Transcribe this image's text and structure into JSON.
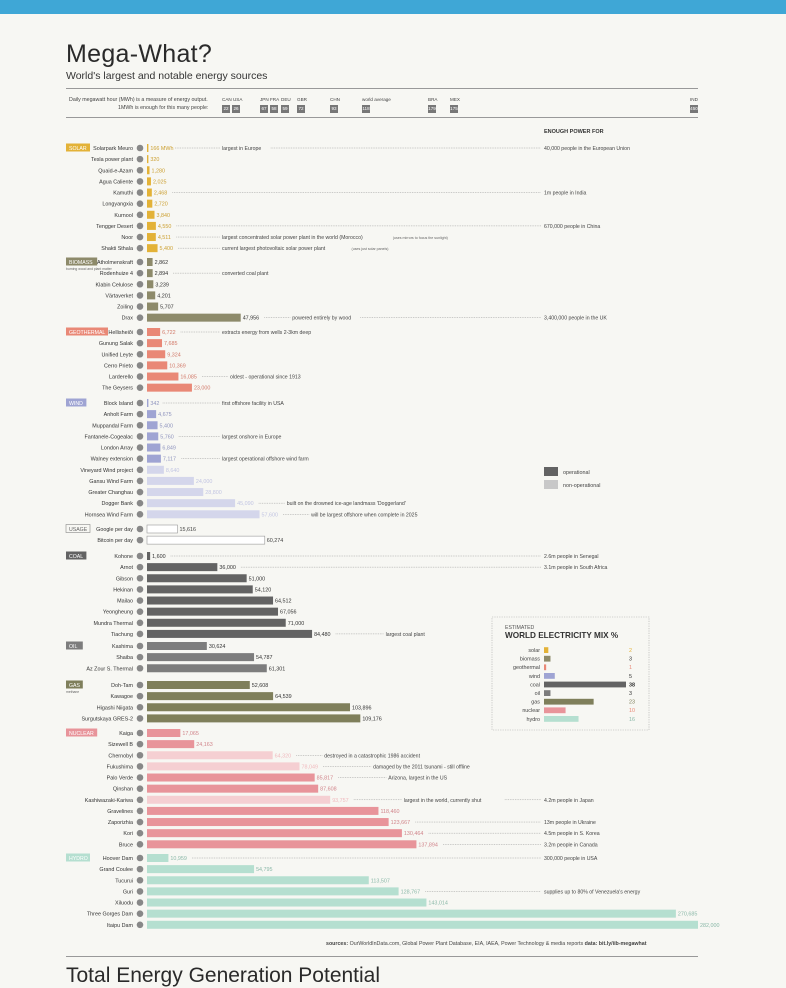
{
  "header": {
    "title": "Mega-What?",
    "subtitle": "World's largest and notable energy sources",
    "daily_note": "Daily megawatt hour (MWh) is a measure of energy output.",
    "enough_note": "1MWh is enough for this many people:",
    "enough_power_for": "ENOUGH POWER FOR",
    "countries": [
      {
        "name": "CAN USA",
        "values": [
          "22",
          "26"
        ]
      },
      {
        "name": "JPN FRA",
        "values": [
          "67",
          "58"
        ]
      },
      {
        "name": "DEU",
        "values": [
          "59"
        ]
      },
      {
        "name": "GBR",
        "values": [
          "72"
        ]
      },
      {
        "name": "CHN",
        "values": [
          "93"
        ]
      },
      {
        "name": "world average",
        "values": [
          "118"
        ]
      },
      {
        "name": "BRA",
        "values": [
          "179"
        ]
      },
      {
        "name": "MEX",
        "values": [
          "175"
        ]
      },
      {
        "name": "IND",
        "values": [
          "450"
        ]
      }
    ]
  },
  "legend": {
    "operational": "operational",
    "non_operational": "non-operational"
  },
  "colors": {
    "solar": "#e3b237",
    "biomass": "#8d8a6a",
    "geothermal": "#e98876",
    "wind": "#9fa4d3",
    "coal": "#636363",
    "oil": "#7d7d7d",
    "gas": "#7f7f5b",
    "nuclear": "#e8949a",
    "hydro": "#b5dfd0",
    "usage": "#ffffff"
  },
  "chart_data": [
    {
      "type": "bar",
      "title": "Mega-What?",
      "xlabel": "Daily megawatt hour (MWh)",
      "scale_max": 282000,
      "groups": [
        {
          "category": "SOLAR",
          "color_key": "solar",
          "items": [
            {
              "name": "Solarpark Meuro",
              "value": 166,
              "value_label": "166 MWh",
              "op": true,
              "note": "largest in Europe",
              "enough": "40,000 people in the European Union"
            },
            {
              "name": "Tesla power plant",
              "value": 320,
              "value_label": "320",
              "op": true
            },
            {
              "name": "Quaid-e-Azam",
              "value": 1280,
              "value_label": "1,280",
              "op": true
            },
            {
              "name": "Agua Caliente",
              "value": 2025,
              "value_label": "2,025",
              "op": true
            },
            {
              "name": "Kamuthi",
              "value": 2468,
              "value_label": "2,468",
              "op": true,
              "enough": "1m people in India"
            },
            {
              "name": "Longyangxia",
              "value": 2720,
              "value_label": "2,720",
              "op": true
            },
            {
              "name": "Kurnool",
              "value": 3840,
              "value_label": "3,840",
              "op": true
            },
            {
              "name": "Tengger Desert",
              "value": 4550,
              "value_label": "4,550",
              "op": true,
              "enough": "670,000 people in China"
            },
            {
              "name": "Noor",
              "value": 4511,
              "value_label": "4,511",
              "op": true,
              "note": "largest concentrated solar power plant in the world (Morocco)",
              "small_note": "(uses mirrors to focus the sunlight)"
            },
            {
              "name": "Shakti Sthala",
              "value": 5400,
              "value_label": "5,400",
              "op": true,
              "note": "current largest photovoltaic solar power plant",
              "small_note": "(uses just solar panels)"
            }
          ]
        },
        {
          "category": "BIOMASS",
          "category_sub": "burning wood and plant matter",
          "color_key": "biomass",
          "items": [
            {
              "name": "Atholmenskraft",
              "value": 2862,
              "value_label": "2,862",
              "op": true
            },
            {
              "name": "Rodenhuize 4",
              "value": 2894,
              "value_label": "2,894",
              "op": true,
              "note": "converted coal plant"
            },
            {
              "name": "Klabin Celulose",
              "value": 3239,
              "value_label": "3,239",
              "op": true
            },
            {
              "name": "Värtaverket",
              "value": 4201,
              "value_label": "4,201",
              "op": true
            },
            {
              "name": "Zoiling",
              "value": 5707,
              "value_label": "5,707",
              "op": true
            },
            {
              "name": "Drax",
              "value": 47956,
              "value_label": "47,956",
              "op": true,
              "note": "powered entirely by wood",
              "enough": "3,400,000 people in the UK"
            }
          ]
        },
        {
          "category": "GEOTHERMAL",
          "color_key": "geothermal",
          "items": [
            {
              "name": "Hellisheiði",
              "value": 6722,
              "value_label": "6,722",
              "op": true,
              "note": "extracts energy from wells 2-3km deep"
            },
            {
              "name": "Gunung Salak",
              "value": 7685,
              "value_label": "7,685",
              "op": true
            },
            {
              "name": "Unified Leyte",
              "value": 9324,
              "value_label": "9,324",
              "op": true
            },
            {
              "name": "Cerro Prieto",
              "value": 10369,
              "value_label": "10,369",
              "op": true
            },
            {
              "name": "Larderello",
              "value": 16085,
              "value_label": "16,085",
              "op": true,
              "note": "oldest - operational since 1913"
            },
            {
              "name": "The Geysers",
              "value": 23000,
              "value_label": "23,000",
              "op": true
            }
          ]
        },
        {
          "category": "WIND",
          "color_key": "wind",
          "items": [
            {
              "name": "Block Island",
              "value": 342,
              "value_label": "342",
              "op": true,
              "note": "first offshore facility in USA"
            },
            {
              "name": "Anholt Farm",
              "value": 4675,
              "value_label": "4,675",
              "op": true
            },
            {
              "name": "Muppandal Farm",
              "value": 5400,
              "value_label": "5,400",
              "op": true
            },
            {
              "name": "Fantanele-Cogealac",
              "value": 5760,
              "value_label": "5,760",
              "op": true,
              "note": "largest onshore in Europe"
            },
            {
              "name": "London Array",
              "value": 6849,
              "value_label": "6,849",
              "op": true
            },
            {
              "name": "Walney extension",
              "value": 7117,
              "value_label": "7,117",
              "op": true,
              "note": "largest operational offshore wind farm"
            },
            {
              "name": "Vineyard Wind project",
              "value": 8640,
              "value_label": "8,640",
              "op": false
            },
            {
              "name": "Gansu Wind Farm",
              "value": 24000,
              "value_label": "24,000",
              "op": false
            },
            {
              "name": "Greater Changhau",
              "value": 28800,
              "value_label": "28,800",
              "op": false
            },
            {
              "name": "Dogger Bank",
              "value": 45090,
              "value_label": "45,090",
              "op": false,
              "note": "built on the drowned ice-age landmass 'Doggerland'"
            },
            {
              "name": "Hornsea Wind Farm",
              "value": 57600,
              "value_label": "57,600",
              "op": false,
              "note": "will be largest offshore when complete in 2025"
            }
          ]
        },
        {
          "category": "USAGE",
          "color_key": "usage",
          "outline": true,
          "items": [
            {
              "name": "Google per day",
              "value": 15616,
              "value_label": "15,616",
              "op": true
            },
            {
              "name": "Bitcoin per day",
              "value": 60274,
              "value_label": "60,274",
              "op": true
            }
          ]
        },
        {
          "category": "COAL",
          "color_key": "coal",
          "items": [
            {
              "name": "Kohone",
              "value": 1600,
              "value_label": "1,600",
              "op": true,
              "enough": "2.6m people in Senegal"
            },
            {
              "name": "Arnot",
              "value": 36000,
              "value_label": "36,000",
              "op": true,
              "enough": "3.1m people in South Africa"
            },
            {
              "name": "Gibson",
              "value": 51000,
              "value_label": "51,000",
              "op": true
            },
            {
              "name": "Hekinan",
              "value": 54120,
              "value_label": "54,120",
              "op": true
            },
            {
              "name": "Mailao",
              "value": 64512,
              "value_label": "64,512",
              "op": true
            },
            {
              "name": "Yeongheung",
              "value": 67056,
              "value_label": "67,056",
              "op": true
            },
            {
              "name": "Mundra Thermal",
              "value": 71000,
              "value_label": "71,000",
              "op": true
            },
            {
              "name": "Tiachung",
              "value": 84480,
              "value_label": "84,480",
              "op": true,
              "note": "largest coal plant"
            }
          ]
        },
        {
          "category": "OIL",
          "color_key": "oil",
          "items": [
            {
              "name": "Kashima",
              "value": 30624,
              "value_label": "30,624",
              "op": true
            },
            {
              "name": "Shaiba",
              "value": 54787,
              "value_label": "54,787",
              "op": true
            },
            {
              "name": "Az Zour S. Thermal",
              "value": 61301,
              "value_label": "61,301",
              "op": true
            }
          ]
        },
        {
          "category": "GAS",
          "category_sub": "methane",
          "color_key": "gas",
          "items": [
            {
              "name": "Doh-Tam",
              "value": 52608,
              "value_label": "52,608",
              "op": true
            },
            {
              "name": "Kawagoe",
              "value": 64539,
              "value_label": "64,539",
              "op": true
            },
            {
              "name": "Higashi Niigata",
              "value": 103896,
              "value_label": "103,896",
              "op": true
            },
            {
              "name": "Surgutskaya GRES-2",
              "value": 109176,
              "value_label": "109,176",
              "op": true
            }
          ]
        },
        {
          "category": "NUCLEAR",
          "color_key": "nuclear",
          "items": [
            {
              "name": "Kaiga",
              "value": 17065,
              "value_label": "17,065",
              "op": true
            },
            {
              "name": "Sizewell B",
              "value": 24163,
              "value_label": "24,163",
              "op": true
            },
            {
              "name": "Chernobyl",
              "value": 64320,
              "value_label": "64,320",
              "op": false,
              "note": "destroyed in a catastrophic 1986 accident"
            },
            {
              "name": "Fukushima",
              "value": 78049,
              "value_label": "78,049",
              "op": false,
              "note": "damaged by the 2011 tsunami - still offline"
            },
            {
              "name": "Palo Verde",
              "value": 85817,
              "value_label": "85,817",
              "op": true,
              "note": "Arizona, largest in the US"
            },
            {
              "name": "Qinshan",
              "value": 87608,
              "value_label": "87,608",
              "op": true
            },
            {
              "name": "Kashiwazaki-Kariwa",
              "value": 93757,
              "value_label": "93,757",
              "op": false,
              "note": "largest in the world, currently shut",
              "enough": "4.2m people in Japan"
            },
            {
              "name": "Gravelines",
              "value": 118460,
              "value_label": "118,460",
              "op": true
            },
            {
              "name": "Zaporizhia",
              "value": 123667,
              "value_label": "123,667",
              "op": true,
              "enough": "13m people in Ukraine"
            },
            {
              "name": "Kori",
              "value": 130464,
              "value_label": "130,464",
              "op": true,
              "enough": "4.5m people in S. Korea"
            },
            {
              "name": "Bruce",
              "value": 137894,
              "value_label": "137,894",
              "op": true,
              "enough": "3.2m people in Canada"
            }
          ]
        },
        {
          "category": "HYDRO",
          "color_key": "hydro",
          "items": [
            {
              "name": "Hoover Dam",
              "value": 10959,
              "value_label": "10,959",
              "op": true,
              "enough": "300,000 people in USA"
            },
            {
              "name": "Grand Coulee",
              "value": 54795,
              "value_label": "54,795",
              "op": true
            },
            {
              "name": "Tucurui",
              "value": 113507,
              "value_label": "113,507",
              "op": true
            },
            {
              "name": "Guri",
              "value": 128767,
              "value_label": "128,767",
              "op": true,
              "enough": "supplies up to 80% of Venezuela's energy"
            },
            {
              "name": "Xiluodu",
              "value": 143014,
              "value_label": "143,014",
              "op": true
            },
            {
              "name": "Three Gorges Dam",
              "value": 270685,
              "value_label": "270,685",
              "op": true
            },
            {
              "name": "Itaipu Dam",
              "value": 282000,
              "value_label": "282,000",
              "op": true
            }
          ]
        }
      ]
    },
    {
      "type": "bar",
      "title": "WORLD ELECTRICITY MIX %",
      "subtitle": "ESTIMATED",
      "categories": [
        "solar",
        "biomass",
        "geothermal",
        "wind",
        "coal",
        "oil",
        "gas",
        "nuclear",
        "hydro"
      ],
      "values": [
        2,
        3,
        1,
        5,
        38,
        3,
        23,
        10,
        16
      ]
    }
  ],
  "footer": {
    "sources_label": "sources:",
    "sources_text": "OurWorldInData.com, Global Power Plant Database, EIA, IAEA, Power Technology & media reports",
    "data_label": "data:",
    "data_link": "bit.ly/iib-megawhat",
    "next_title": "Total Energy Generation Potential"
  }
}
